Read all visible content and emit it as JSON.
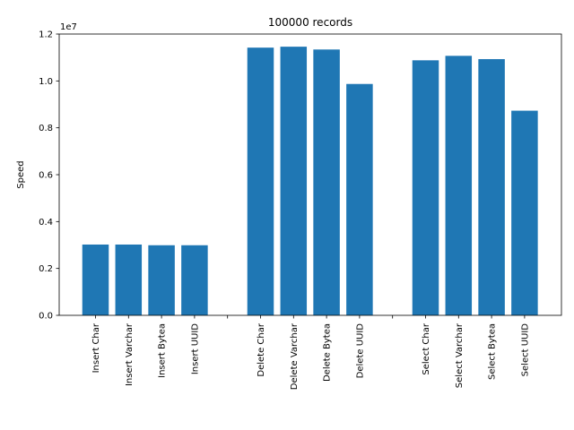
{
  "chart_data": {
    "type": "bar",
    "title": "100000 records",
    "xlabel": "",
    "ylabel": "Speed",
    "y_scale_label": "1e7",
    "y_scale": 10000000,
    "ylim": [
      0,
      1.2
    ],
    "y_ticks": [
      0.0,
      0.2,
      0.4,
      0.6,
      0.8,
      1.0,
      1.2
    ],
    "y_tick_labels": [
      "0.0",
      "0.2",
      "0.4",
      "0.6",
      "0.8",
      "1.0",
      "1.2"
    ],
    "grid": false,
    "bar_color": "#1f77b4",
    "categories": [
      "Insert Char",
      "Insert Varchar",
      "Insert Bytea",
      "Insert UUID",
      "",
      "Delete Char",
      "Delete Varchar",
      "Delete Bytea",
      "Delete UUID",
      "",
      "Select Char",
      "Select Varchar",
      "Select Bytea",
      "Select UUID"
    ],
    "values": [
      0.302,
      0.302,
      0.299,
      0.299,
      0,
      1.142,
      1.146,
      1.134,
      0.987,
      0,
      1.088,
      1.107,
      1.093,
      0.873
    ]
  }
}
